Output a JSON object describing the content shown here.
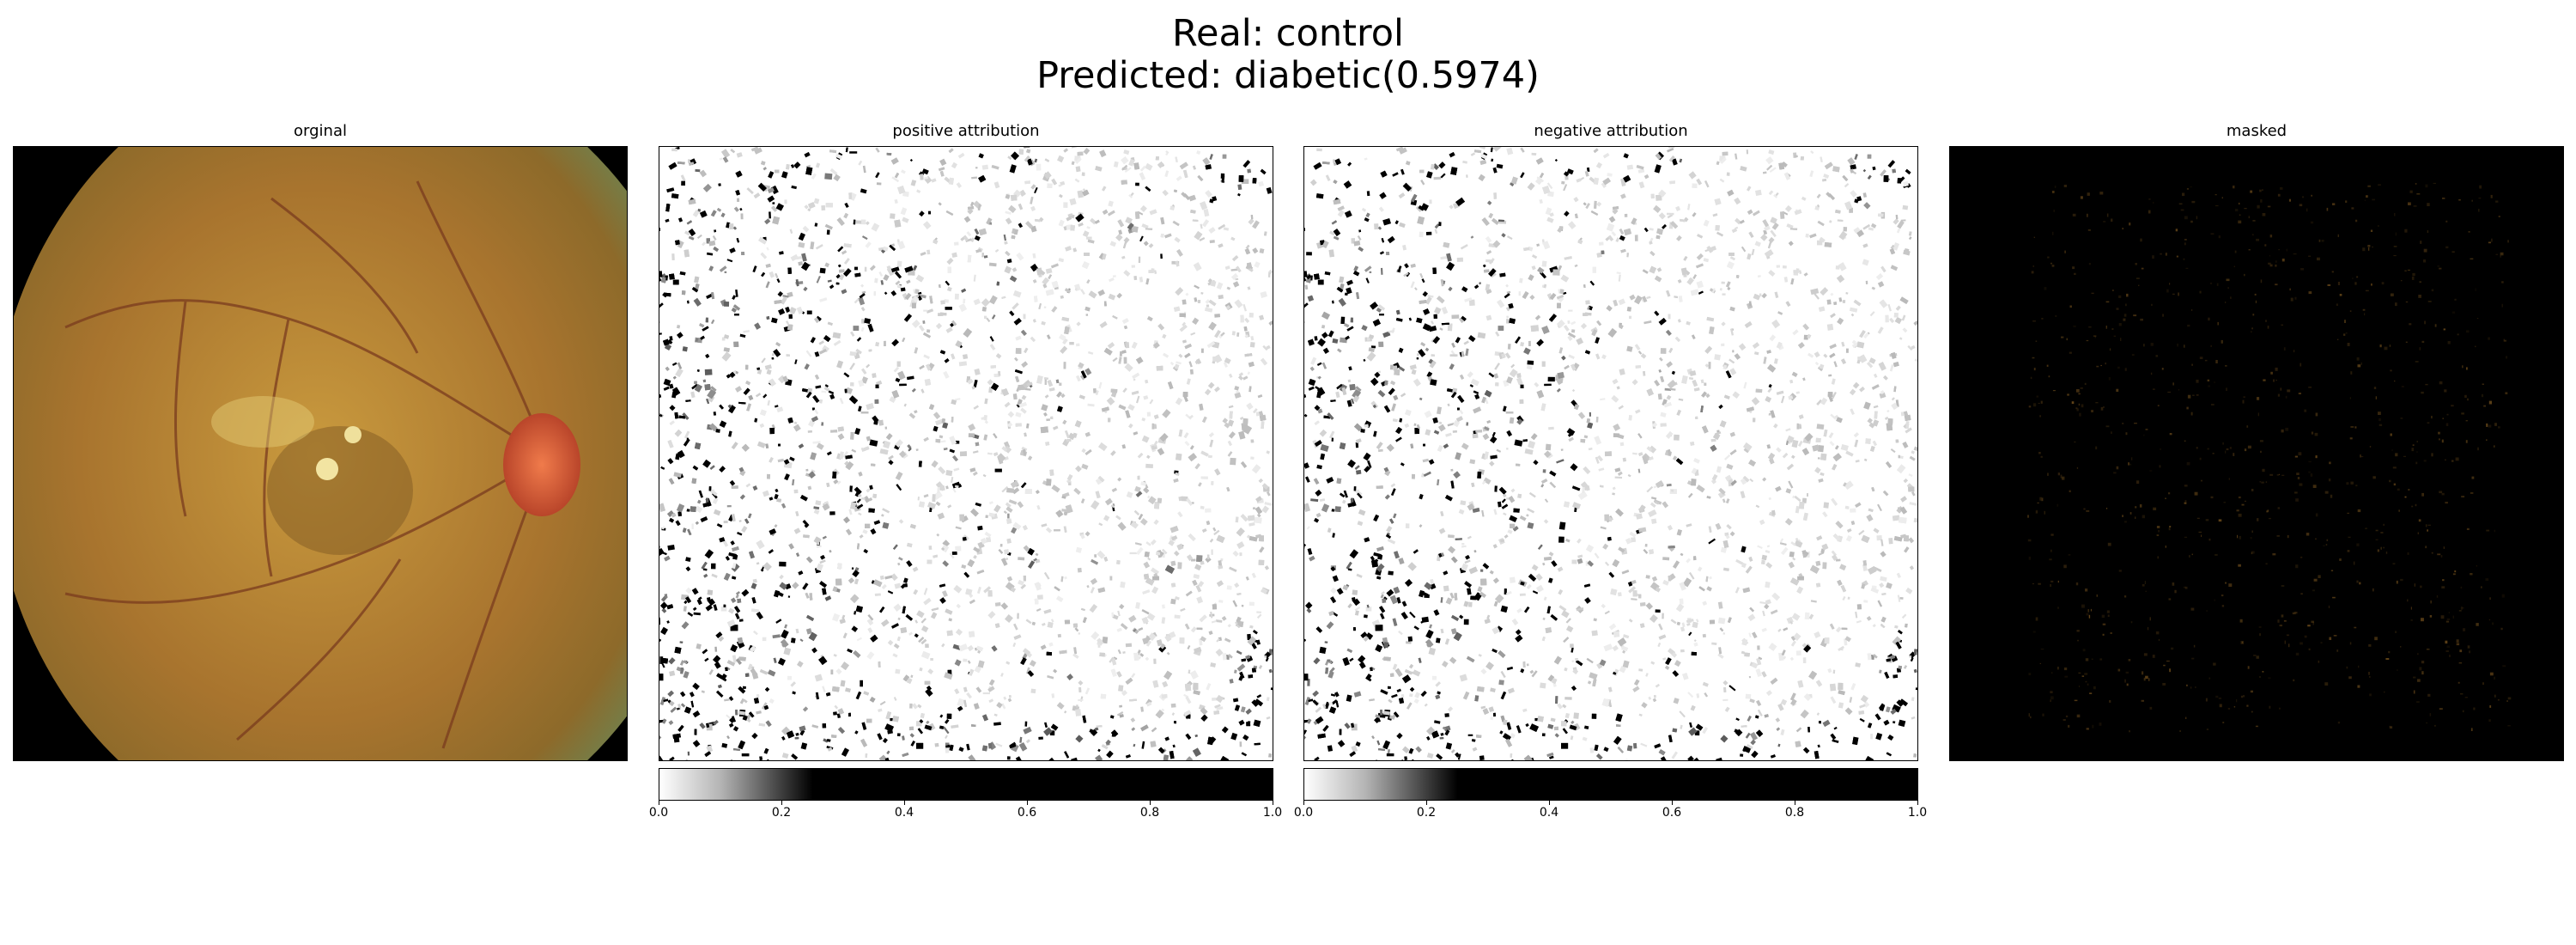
{
  "figure": {
    "title_line1": "Real: control",
    "title_line2": "Predicted: diabetic(0.5974)"
  },
  "panels": [
    {
      "title": "orginal"
    },
    {
      "title": "positive attribution"
    },
    {
      "title": "negative attribution"
    },
    {
      "title": "masked"
    }
  ],
  "colorbar": {
    "ticks": [
      "0.0",
      "0.2",
      "0.4",
      "0.6",
      "0.8",
      "1.0"
    ],
    "range": [
      0.0,
      1.0
    ]
  },
  "colors": {
    "fundus_center": "#c99a3e",
    "fundus_edge": "#6fa37a",
    "optic_disc": "#e0653a",
    "background": "#000000",
    "attribution_cmap": "greys"
  }
}
